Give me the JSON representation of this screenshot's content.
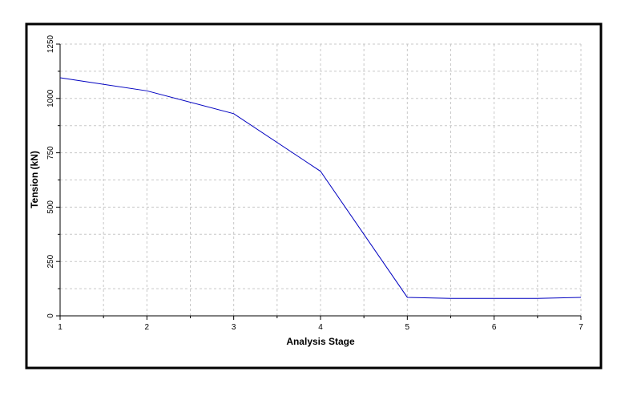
{
  "chart_data": {
    "type": "line",
    "x_label": "Analysis Stage",
    "y_label": "Tension (kN)",
    "x": [
      1,
      2,
      3,
      4,
      5,
      5.5,
      6.5,
      7
    ],
    "series": [
      {
        "name": "Tension",
        "color": "#0000c0",
        "values": [
          1095,
          1035,
          930,
          665,
          85,
          80,
          80,
          85
        ]
      }
    ],
    "xlim": [
      1,
      7
    ],
    "xticks": [
      1,
      2,
      3,
      4,
      5,
      6,
      7
    ],
    "ylim": [
      0,
      1250
    ],
    "yticks": [
      0,
      250,
      500,
      750,
      1000,
      1250
    ],
    "grid": true
  }
}
